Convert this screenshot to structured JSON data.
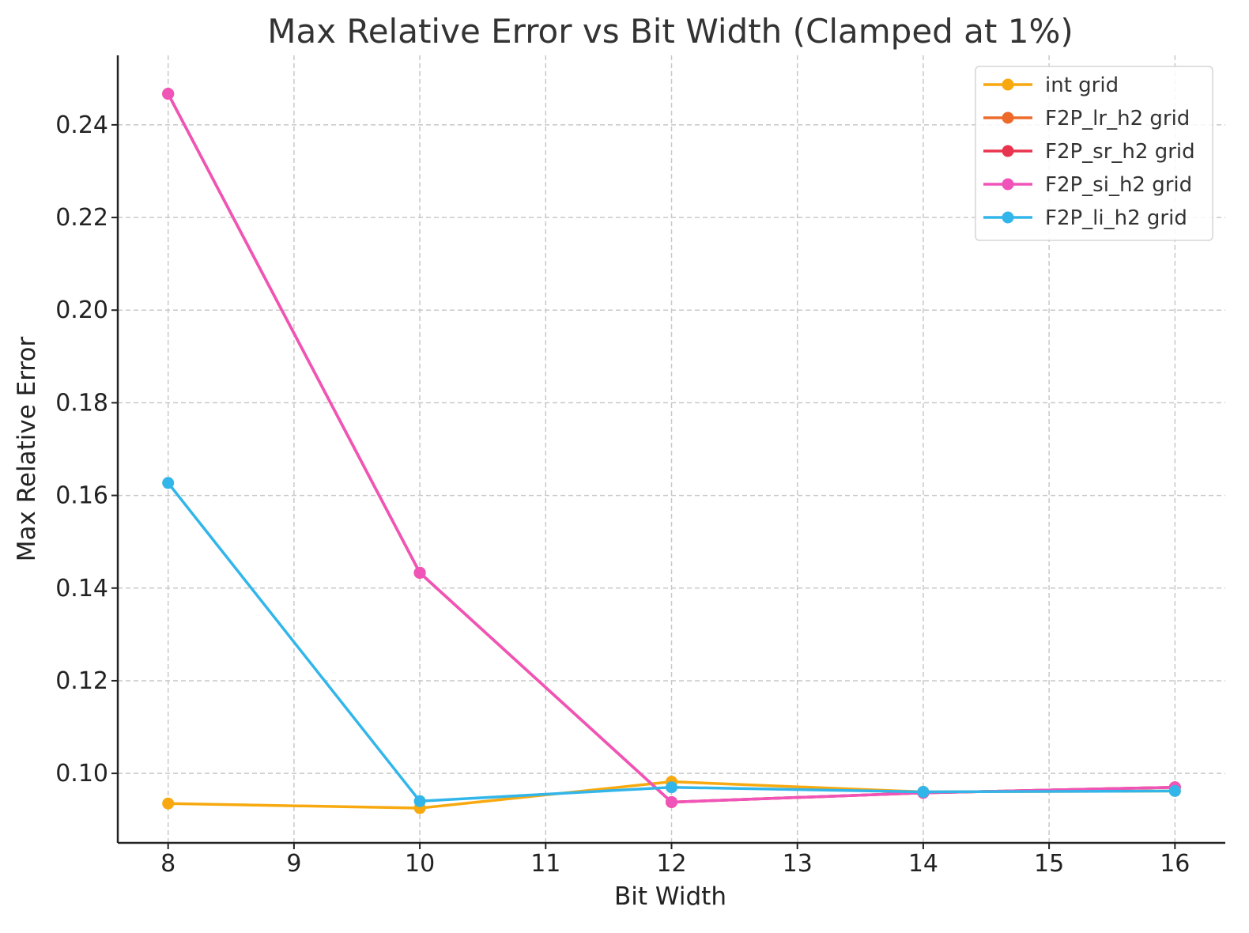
{
  "chart_data": {
    "type": "line",
    "title": "Max Relative Error vs Bit Width (Clamped at 1%)",
    "xlabel": "Bit Width",
    "ylabel": "Max Relative Error",
    "x": [
      8,
      10,
      12,
      14,
      16
    ],
    "xlim": [
      7.6,
      16.4
    ],
    "ylim": [
      0.085,
      0.255
    ],
    "xticks": [
      8,
      9,
      10,
      11,
      12,
      13,
      14,
      15,
      16
    ],
    "yticks": [
      0.1,
      0.12,
      0.14,
      0.16,
      0.18,
      0.2,
      0.22,
      0.24
    ],
    "ytick_labels": [
      "0.10",
      "0.12",
      "0.14",
      "0.16",
      "0.18",
      "0.20",
      "0.22",
      "0.24"
    ],
    "grid": true,
    "legend_position": "top-right",
    "series": [
      {
        "name": "int grid",
        "color": "#F7A90F",
        "values": [
          0.0935,
          0.0925,
          0.0982,
          0.096,
          0.0962
        ]
      },
      {
        "name": "F2P_lr_h2 grid",
        "color": "#EE6A2A",
        "values": [
          0.2467,
          0.1433,
          0.0938,
          0.0958,
          0.097
        ]
      },
      {
        "name": "F2P_sr_h2 grid",
        "color": "#E8344E",
        "values": [
          0.2467,
          0.1433,
          0.0938,
          0.0958,
          0.097
        ]
      },
      {
        "name": "F2P_si_h2 grid",
        "color": "#F054B8",
        "values": [
          0.2467,
          0.1433,
          0.0938,
          0.0958,
          0.097
        ]
      },
      {
        "name": "F2P_li_h2 grid",
        "color": "#32B6EA",
        "values": [
          0.1627,
          0.094,
          0.097,
          0.096,
          0.0962
        ]
      }
    ]
  }
}
